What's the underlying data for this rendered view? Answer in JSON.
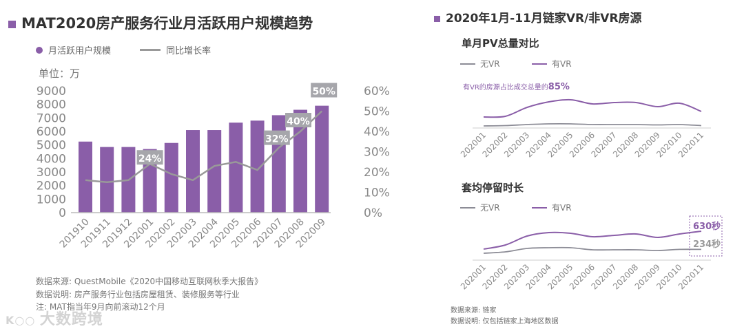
{
  "left": {
    "title": "MAT2020房产服务行业月活跃用户规模趋势",
    "legend_bar": "月活跃用户规模",
    "legend_line": "同比增长率",
    "unit": "单位：万",
    "notes": [
      "数据来源: QuestMobile《2020中国移动互联网秋季大报告》",
      "数据说明: 房产服务行业包括房屋租赁、装修服务等行业",
      "注: MAT指当年9月向前滚动12个月"
    ],
    "watermark": "大数跨境"
  },
  "right": {
    "title": "2020年1月-11月链家VR/非VR房源",
    "notes": [
      "数据来源: 链家",
      "数据说明: 仅包括链家上海地区数据"
    ]
  },
  "colors": {
    "bar": "#8a5ea8",
    "line_gray": "#999999",
    "vr_purple": "#8a5ea8",
    "novr_gray": "#8c8c96",
    "label_box": "#a6a6ab"
  },
  "chart_data": [
    {
      "type": "bar+line",
      "title": "MAT2020房产服务行业月活跃用户规模趋势",
      "categories": [
        "201910",
        "201911",
        "201912",
        "202001",
        "202002",
        "202003",
        "202004",
        "202005",
        "202006",
        "202007",
        "202008",
        "202009"
      ],
      "series": [
        {
          "name": "月活跃用户规模",
          "type": "bar",
          "axis": "left",
          "values": [
            5250,
            4850,
            4850,
            4700,
            5150,
            6100,
            6100,
            6650,
            6800,
            7200,
            7600,
            7900
          ]
        },
        {
          "name": "同比增长率",
          "type": "line",
          "axis": "right",
          "values": [
            16,
            15,
            16,
            24,
            19,
            16,
            23,
            25,
            21,
            32,
            40,
            50
          ]
        }
      ],
      "data_labels": [
        {
          "category": "202001",
          "text": "24%"
        },
        {
          "category": "202007",
          "text": "32%"
        },
        {
          "category": "202008",
          "text": "40%"
        },
        {
          "category": "202009",
          "text": "50%"
        }
      ],
      "ylabel": "单位：万",
      "ylim": [
        0,
        9000
      ],
      "yticks": [
        "0",
        "1000",
        "2000",
        "3000",
        "4000",
        "5000",
        "6000",
        "7000",
        "8000",
        "9000"
      ],
      "y2lim": [
        0,
        60
      ],
      "y2ticks": [
        "0%",
        "10%",
        "20%",
        "30%",
        "40%",
        "50%",
        "60%"
      ],
      "grid": false,
      "legend": "top-left"
    },
    {
      "type": "line",
      "title": "单月PV总量对比",
      "annotation": {
        "prefix": "有VR的房源占比成交总量的",
        "value": "85%"
      },
      "categories": [
        "202001",
        "202002",
        "202003",
        "202004",
        "202005",
        "202006",
        "202007",
        "202008",
        "202009",
        "202010",
        "202011"
      ],
      "series": [
        {
          "name": "无VR",
          "values": [
            3,
            3.5,
            5,
            6,
            6,
            5,
            5,
            5,
            4.5,
            5,
            3.5
          ]
        },
        {
          "name": "有VR",
          "values": [
            16,
            17,
            30,
            38,
            41,
            35,
            37,
            37,
            31,
            36,
            24
          ]
        }
      ],
      "grid": false,
      "legend": "top-left"
    },
    {
      "type": "line",
      "title": "套均停留时长",
      "categories": [
        "202001",
        "202002",
        "202003",
        "202004",
        "202005",
        "202006",
        "202007",
        "202008",
        "202009",
        "202010",
        "202011"
      ],
      "series": [
        {
          "name": "无VR",
          "values": [
            150,
            180,
            255,
            270,
            270,
            225,
            225,
            225,
            210,
            234,
            234
          ]
        },
        {
          "name": "有VR",
          "values": [
            240,
            330,
            525,
            600,
            585,
            510,
            540,
            570,
            495,
            570,
            630
          ]
        }
      ],
      "data_labels": [
        {
          "series": "有VR",
          "text": "630秒"
        },
        {
          "series": "无VR",
          "text": "234秒"
        }
      ],
      "grid": false,
      "legend": "top-left"
    }
  ]
}
